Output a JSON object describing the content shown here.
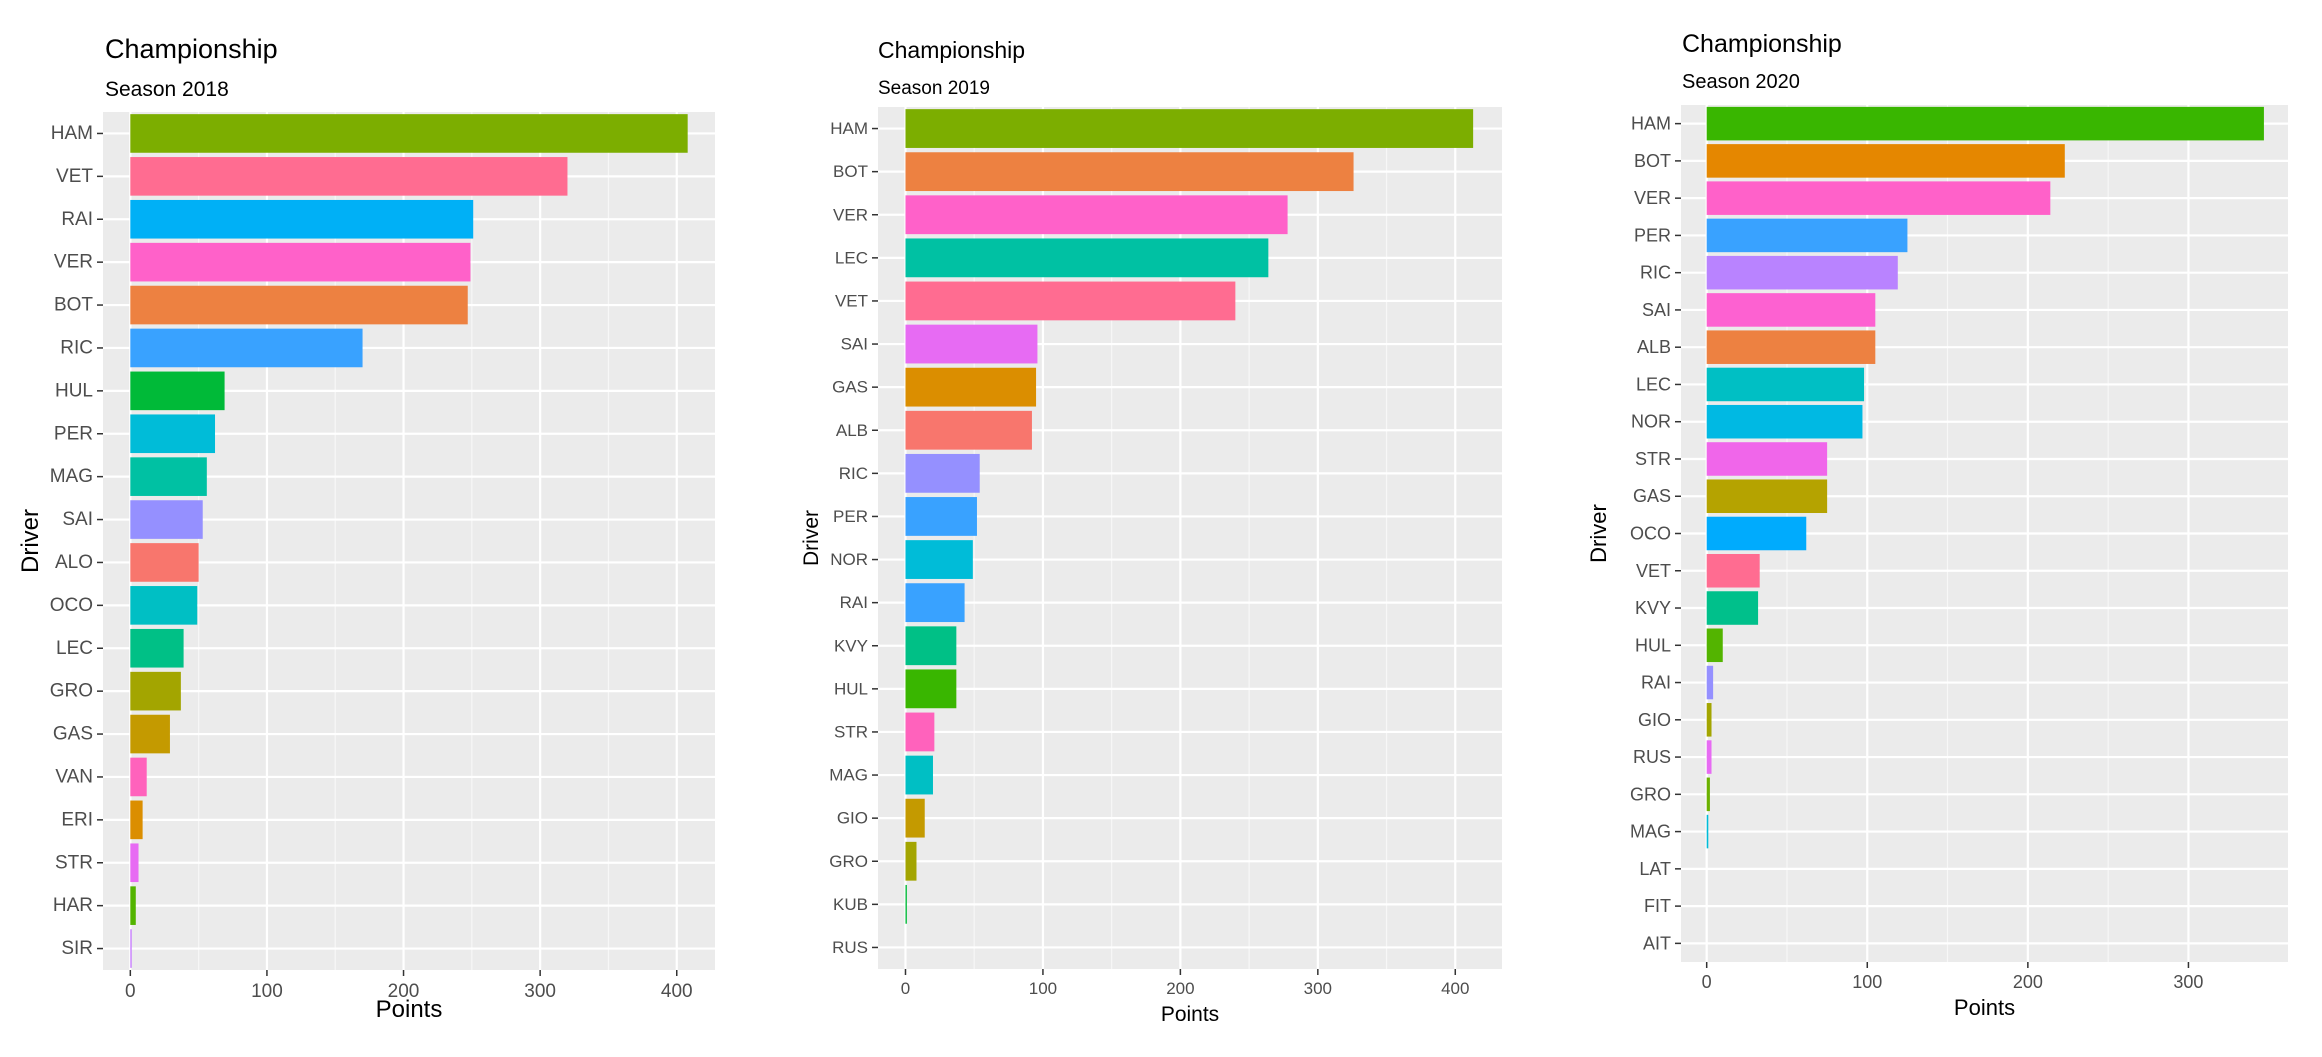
{
  "chart_data": [
    {
      "type": "bar",
      "orientation": "horizontal",
      "title": "Championship",
      "subtitle": "Season 2018",
      "xlabel": "Points",
      "ylabel": "Driver",
      "xlim": [
        -20,
        428
      ],
      "xticks": [
        0,
        100,
        200,
        300,
        400
      ],
      "grid": true,
      "legend": "none",
      "categories": [
        "HAM",
        "VET",
        "RAI",
        "VER",
        "BOT",
        "RIC",
        "HUL",
        "PER",
        "MAG",
        "SAI",
        "ALO",
        "OCO",
        "LEC",
        "GRO",
        "GAS",
        "VAN",
        "ERI",
        "STR",
        "HAR",
        "SIR"
      ],
      "values": [
        408,
        320,
        251,
        249,
        247,
        170,
        69,
        62,
        56,
        53,
        50,
        49,
        39,
        37,
        29,
        12,
        9,
        6,
        4,
        1
      ],
      "colors": [
        "#7CAE00",
        "#FF6C91",
        "#00B0F6",
        "#FF61C9",
        "#ED8141",
        "#39A2FF",
        "#00BA38",
        "#00BCD8",
        "#00C1A3",
        "#9590FF",
        "#F8766D",
        "#00BFC4",
        "#00C086",
        "#A3A500",
        "#C49A00",
        "#FF62BC",
        "#DB8E00",
        "#E76BF3",
        "#53B400",
        "#C77CFF"
      ]
    },
    {
      "type": "bar",
      "orientation": "horizontal",
      "title": "Championship",
      "subtitle": "Season 2019",
      "xlabel": "Points",
      "ylabel": "Driver",
      "xlim": [
        -20,
        434
      ],
      "xticks": [
        0,
        100,
        200,
        300,
        400
      ],
      "grid": true,
      "legend": "none",
      "categories": [
        "HAM",
        "BOT",
        "VER",
        "LEC",
        "VET",
        "SAI",
        "GAS",
        "ALB",
        "RIC",
        "PER",
        "NOR",
        "RAI",
        "KVY",
        "HUL",
        "STR",
        "MAG",
        "GIO",
        "GRO",
        "KUB",
        "RUS"
      ],
      "values": [
        413,
        326,
        278,
        264,
        240,
        96,
        95,
        92,
        54,
        52,
        49,
        43,
        37,
        37,
        21,
        20,
        14,
        8,
        1,
        0
      ],
      "colors": [
        "#7CAE00",
        "#ED8141",
        "#FF61C9",
        "#00C1A3",
        "#FF6C91",
        "#E76BF3",
        "#DB8E00",
        "#F8766D",
        "#9590FF",
        "#39A2FF",
        "#00BCD8",
        "#39A2FF",
        "#00C086",
        "#39B600",
        "#FF62BC",
        "#00BFC4",
        "#C49A00",
        "#A3A500",
        "#00BA38",
        "#C77CFF"
      ]
    },
    {
      "type": "bar",
      "orientation": "horizontal",
      "title": "Championship",
      "subtitle": "Season 2020",
      "xlabel": "Points",
      "ylabel": "Driver",
      "xlim": [
        -16,
        362
      ],
      "xticks": [
        0,
        100,
        200,
        300
      ],
      "grid": true,
      "legend": "none",
      "categories": [
        "HAM",
        "BOT",
        "VER",
        "PER",
        "RIC",
        "SAI",
        "ALB",
        "LEC",
        "NOR",
        "STR",
        "GAS",
        "OCO",
        "VET",
        "KVY",
        "HUL",
        "RAI",
        "GIO",
        "RUS",
        "GRO",
        "MAG",
        "LAT",
        "FIT",
        "AIT"
      ],
      "values": [
        347,
        223,
        214,
        125,
        119,
        105,
        105,
        98,
        97,
        75,
        75,
        62,
        33,
        32,
        10,
        4,
        3,
        3,
        2,
        1,
        0,
        0,
        0
      ],
      "colors": [
        "#39B600",
        "#E58700",
        "#FF61C9",
        "#39A2FF",
        "#B983FF",
        "#FD61D1",
        "#ED8141",
        "#00BFC4",
        "#00B9E3",
        "#F066EA",
        "#B5A300",
        "#00ABFD",
        "#FF6C91",
        "#00C08B",
        "#53B400",
        "#9590FF",
        "#A3A500",
        "#E76BF3",
        "#6BB100",
        "#00BCD8",
        "#C77CFF",
        "#C77CFF",
        "#C77CFF"
      ]
    }
  ]
}
